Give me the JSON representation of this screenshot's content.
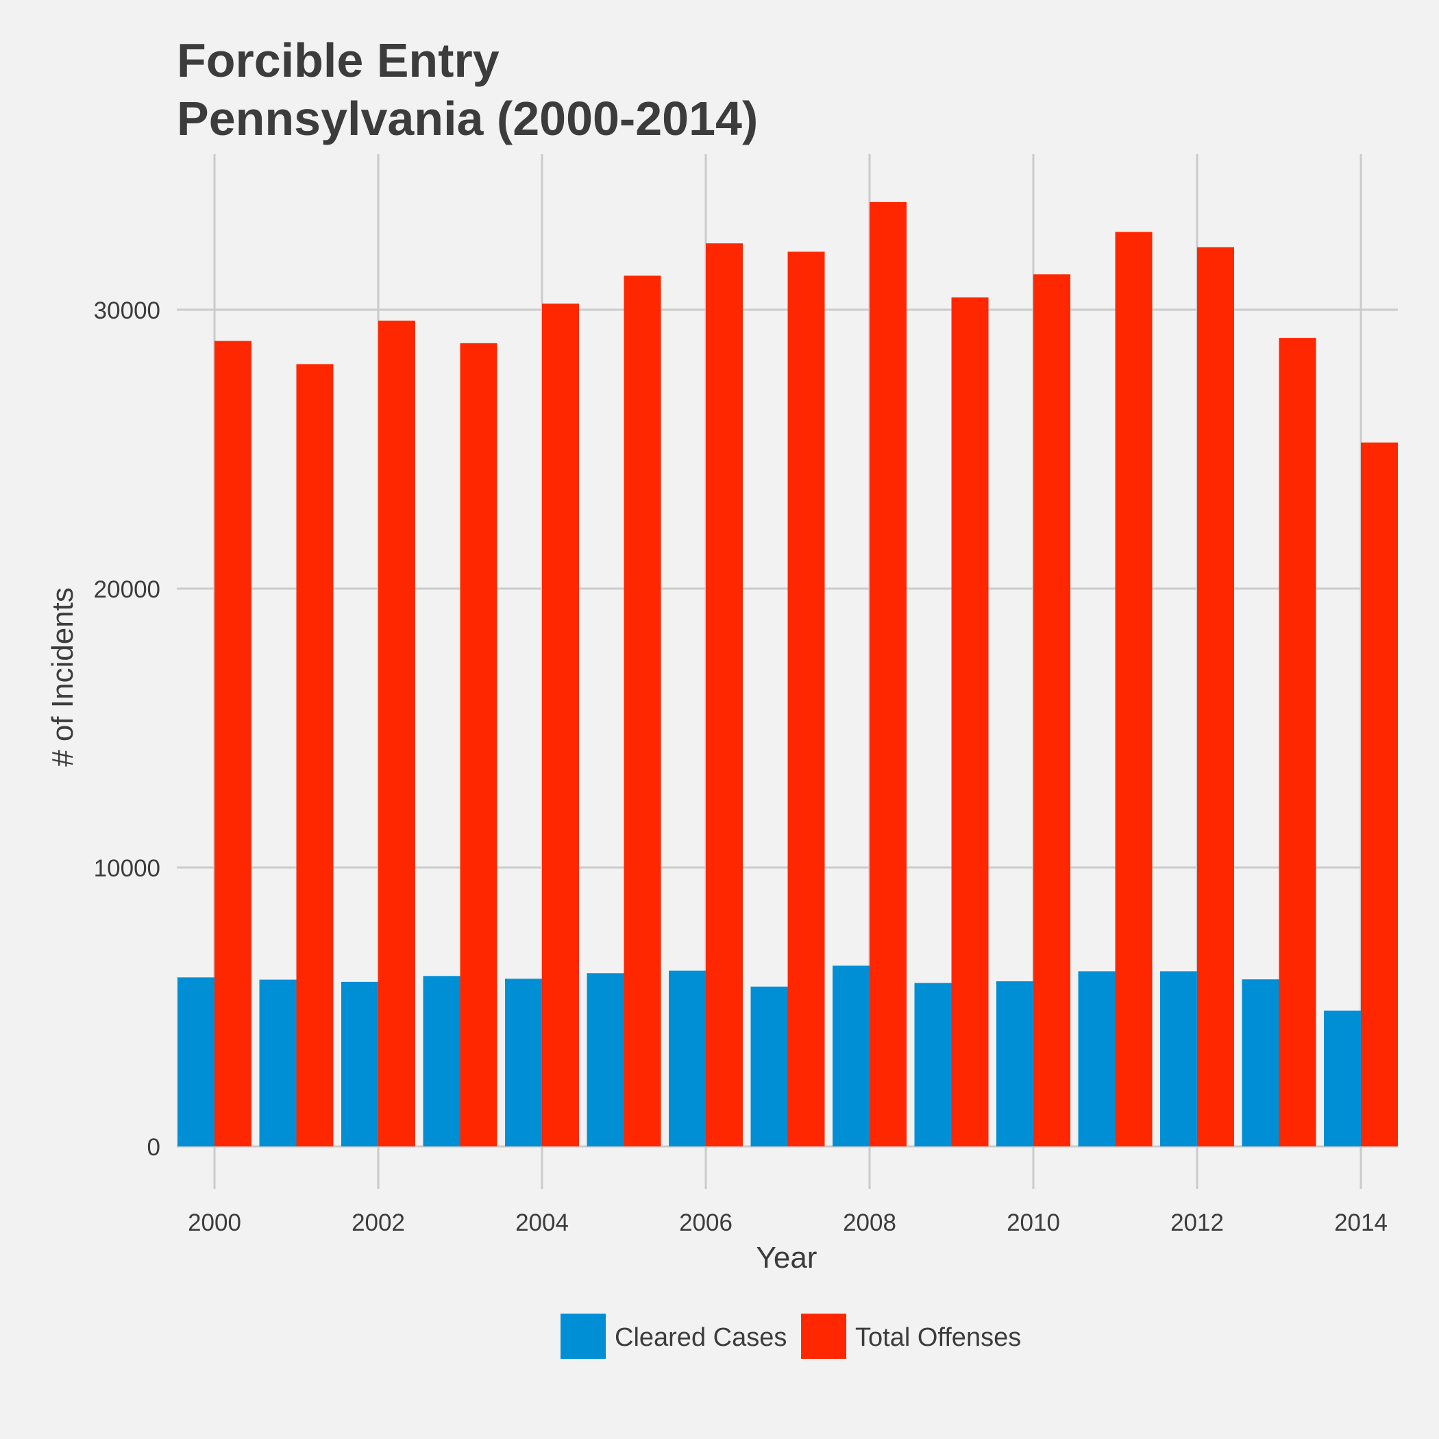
{
  "chart_data": {
    "type": "bar",
    "title_lines": [
      "Forcible Entry",
      "Pennsylvania (2000-2014)"
    ],
    "xlabel": "Year",
    "ylabel": "# of Incidents",
    "x": [
      2000,
      2001,
      2002,
      2003,
      2004,
      2005,
      2006,
      2007,
      2008,
      2009,
      2010,
      2011,
      2012,
      2013,
      2014
    ],
    "x_ticks": [
      2000,
      2002,
      2004,
      2006,
      2008,
      2010,
      2012,
      2014
    ],
    "y_ticks": [
      0,
      10000,
      20000,
      30000
    ],
    "ylim": [
      0,
      35000
    ],
    "grid": true,
    "legend_position": "bottom",
    "series": [
      {
        "name": "Cleared Cases",
        "color": "#008fd5",
        "values": [
          6060,
          5980,
          5900,
          6110,
          6010,
          6210,
          6300,
          5730,
          6480,
          5860,
          5920,
          6280,
          6280,
          5990,
          4870
        ]
      },
      {
        "name": "Total Offenses",
        "color": "#ff2700",
        "values": [
          28880,
          28050,
          29610,
          28800,
          30220,
          31220,
          32380,
          32080,
          33860,
          30440,
          31270,
          32790,
          32240,
          28990,
          25240
        ]
      }
    ]
  }
}
